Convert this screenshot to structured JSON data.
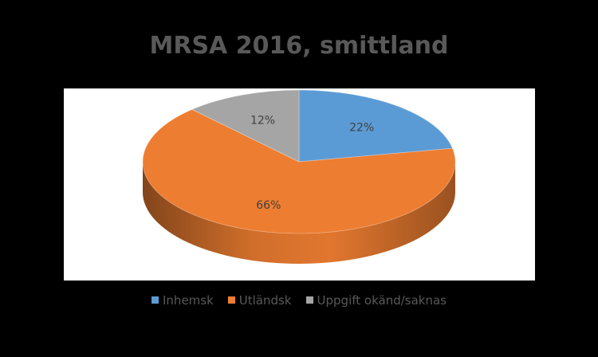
{
  "chart_data": {
    "type": "pie",
    "title": "MRSA 2016, smittland",
    "style": "3d",
    "data_label_format": "percent",
    "slices": [
      {
        "label": "Inhemsk",
        "value": 22,
        "data_label": "22%",
        "color": "#5B9BD5"
      },
      {
        "label": "Utländsk",
        "value": 66,
        "data_label": "66%",
        "color": "#ED7D31"
      },
      {
        "label": "Uppgift okänd/saknas",
        "value": 12,
        "data_label": "12%",
        "color": "#A5A5A5"
      }
    ],
    "legend_position": "bottom",
    "background_color": "#000000",
    "plot_background": "#ffffff",
    "text_color": "#595959"
  }
}
